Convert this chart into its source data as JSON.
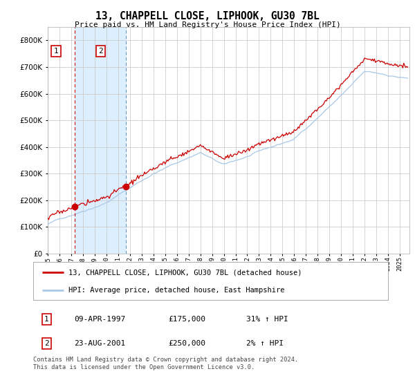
{
  "title": "13, CHAPPELL CLOSE, LIPHOOK, GU30 7BL",
  "subtitle": "Price paid vs. HM Land Registry's House Price Index (HPI)",
  "sale1_date": 1997.27,
  "sale1_price": 175000,
  "sale2_date": 2001.64,
  "sale2_price": 250000,
  "table_row1": [
    "1",
    "09-APR-1997",
    "£175,000",
    "31% ↑ HPI"
  ],
  "table_row2": [
    "2",
    "23-AUG-2001",
    "£250,000",
    "2% ↑ HPI"
  ],
  "legend_line1": "13, CHAPPELL CLOSE, LIPHOOK, GU30 7BL (detached house)",
  "legend_line2": "HPI: Average price, detached house, East Hampshire",
  "footer": "Contains HM Land Registry data © Crown copyright and database right 2024.\nThis data is licensed under the Open Government Licence v3.0.",
  "hpi_color": "#a8c8e8",
  "price_color": "#cc0000",
  "marker_color": "#cc0000",
  "vline1_color": "#cc0000",
  "vline2_color": "#6699cc",
  "shade_color": "#ddeeff",
  "ylim": [
    0,
    850000
  ],
  "xlim_start": 1995.0,
  "xlim_end": 2025.83,
  "background_color": "#ffffff",
  "grid_color": "#cccccc"
}
